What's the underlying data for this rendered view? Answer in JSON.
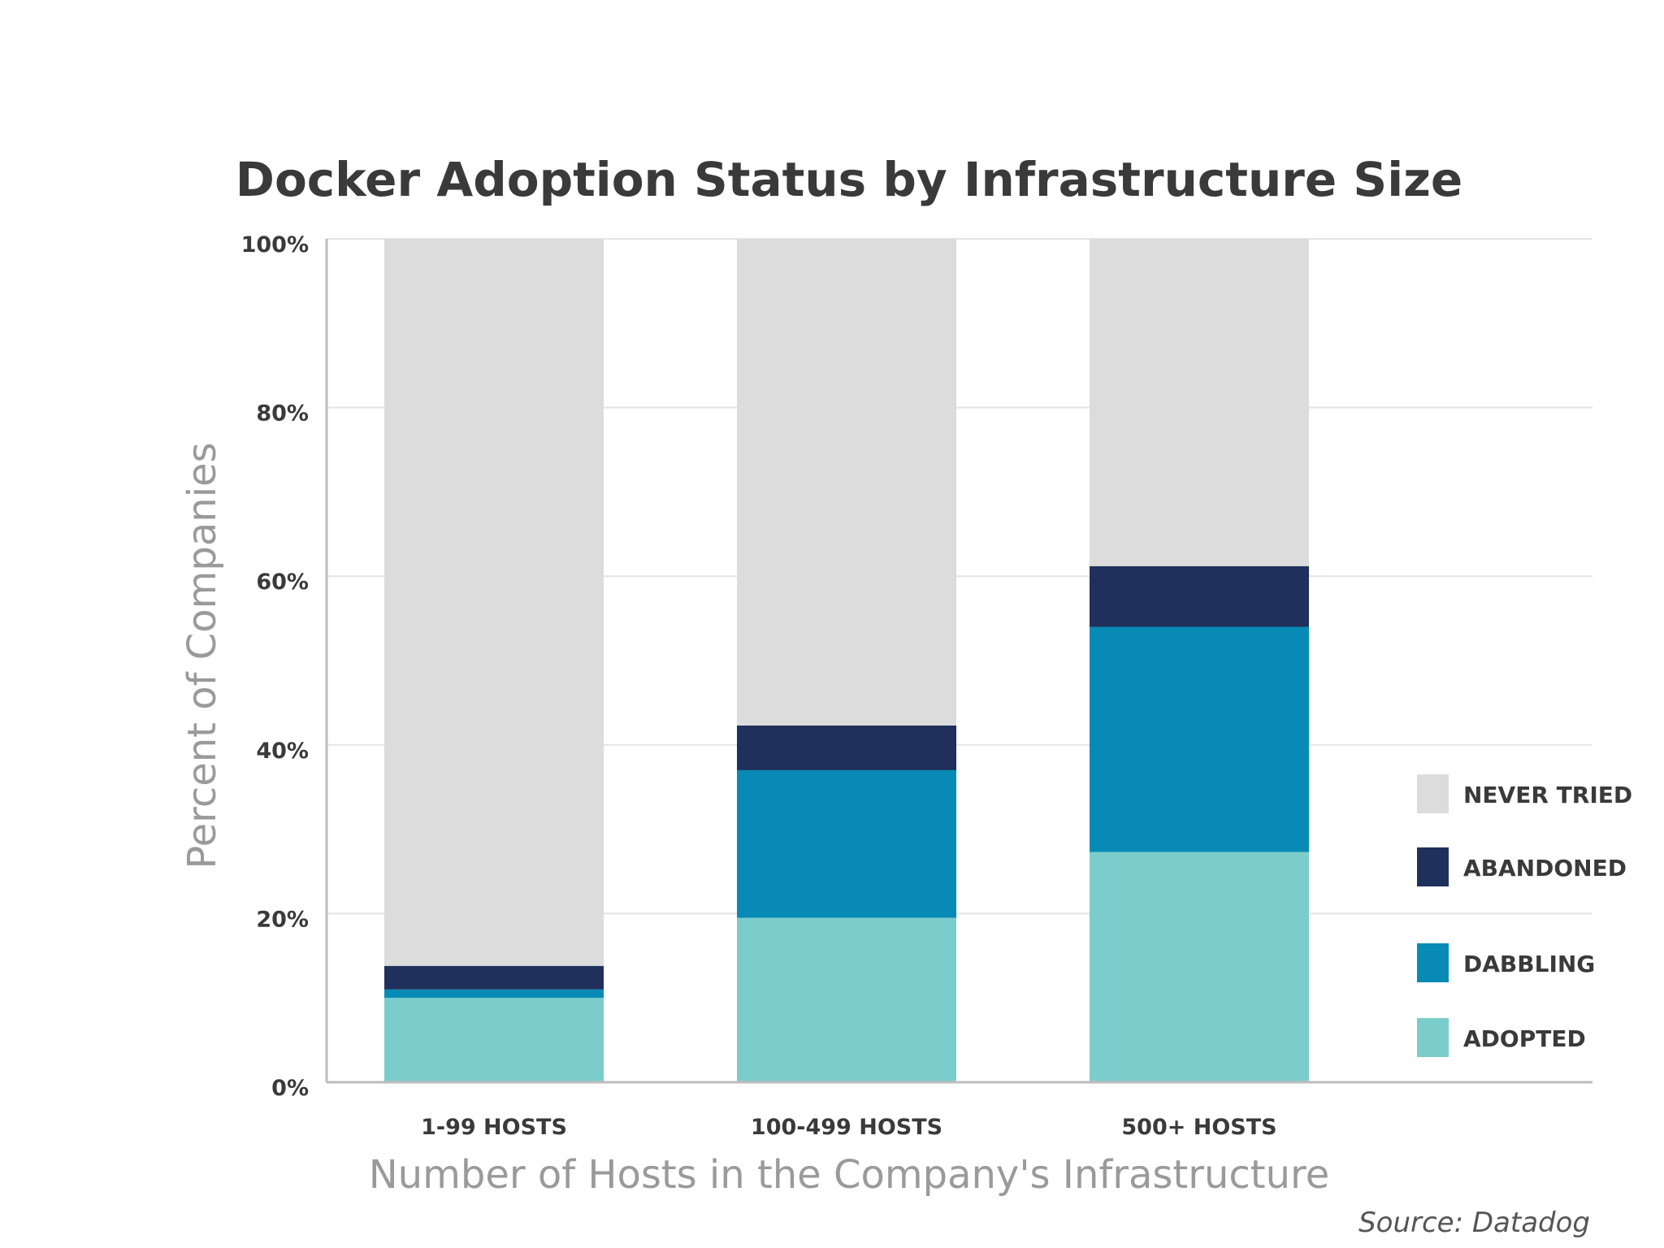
{
  "chart_data": {
    "type": "bar",
    "stacked": true,
    "title": "Docker Adoption Status by Infrastructure Size",
    "xlabel": "Number of Hosts in the Company's Infrastructure",
    "ylabel": "Percent of Companies",
    "ylim": [
      0,
      100
    ],
    "y_ticks": [
      "0%",
      "20%",
      "40%",
      "60%",
      "80%",
      "100%"
    ],
    "y_tick_values": [
      0,
      20,
      40,
      60,
      80,
      100
    ],
    "grid": true,
    "legend_position": "right",
    "categories": [
      "1-99 HOSTS",
      "100-499 HOSTS",
      "500+ HOSTS"
    ],
    "series": [
      {
        "name": "ADOPTED",
        "color": "#7bcdcb",
        "values": [
          10,
          19.5,
          27.3
        ]
      },
      {
        "name": "DABBLING",
        "color": "#078bb6",
        "values": [
          1,
          17.5,
          26.7
        ]
      },
      {
        "name": "ABANDONED",
        "color": "#1f305c",
        "values": [
          2.8,
          5.3,
          7.2
        ]
      },
      {
        "name": "NEVER TRIED",
        "color": "#dcdcdc",
        "values": [
          86.2,
          57.7,
          38.8
        ]
      }
    ],
    "legend_order": [
      "NEVER TRIED",
      "ABANDONED",
      "DABBLING",
      "ADOPTED"
    ]
  },
  "source": "Source: Datadog"
}
